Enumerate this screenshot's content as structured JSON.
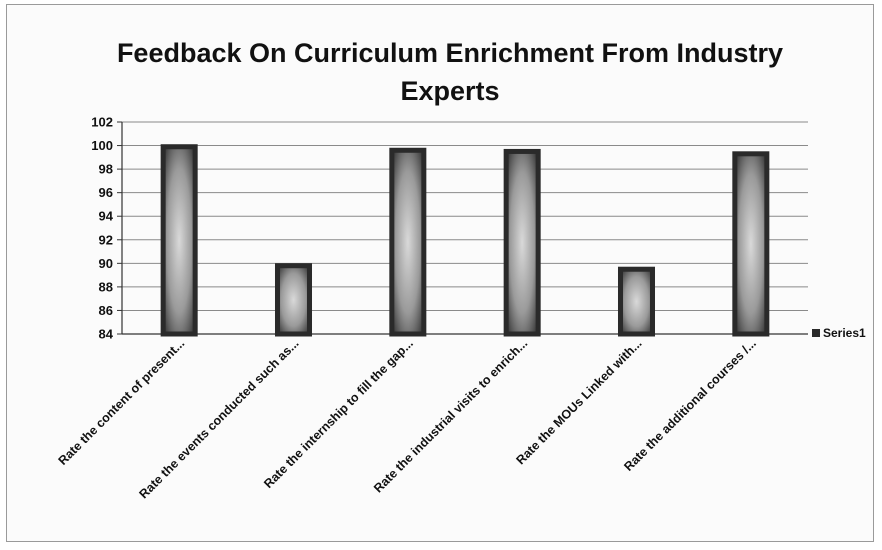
{
  "chart_data": {
    "type": "bar",
    "title": "Feedback On Curriculum Enrichment From Industry\nExperts",
    "categories": [
      "Rate the content of present...",
      "Rate the events conducted such as...",
      "Rate the internship to fill the gap...",
      "Rate the industrial visits to enrich...",
      "Rate the MOUs Linked with...",
      "Rate the additional courses /..."
    ],
    "series": [
      {
        "name": "Series1",
        "values": [
          99.9,
          89.8,
          99.6,
          99.5,
          89.5,
          99.3
        ]
      }
    ],
    "ylim": [
      84,
      102
    ],
    "yticks": [
      84,
      86,
      88,
      90,
      92,
      94,
      96,
      98,
      100,
      102
    ],
    "grid": true,
    "legend_position": "right",
    "bar_color": "#2a2a2a"
  }
}
